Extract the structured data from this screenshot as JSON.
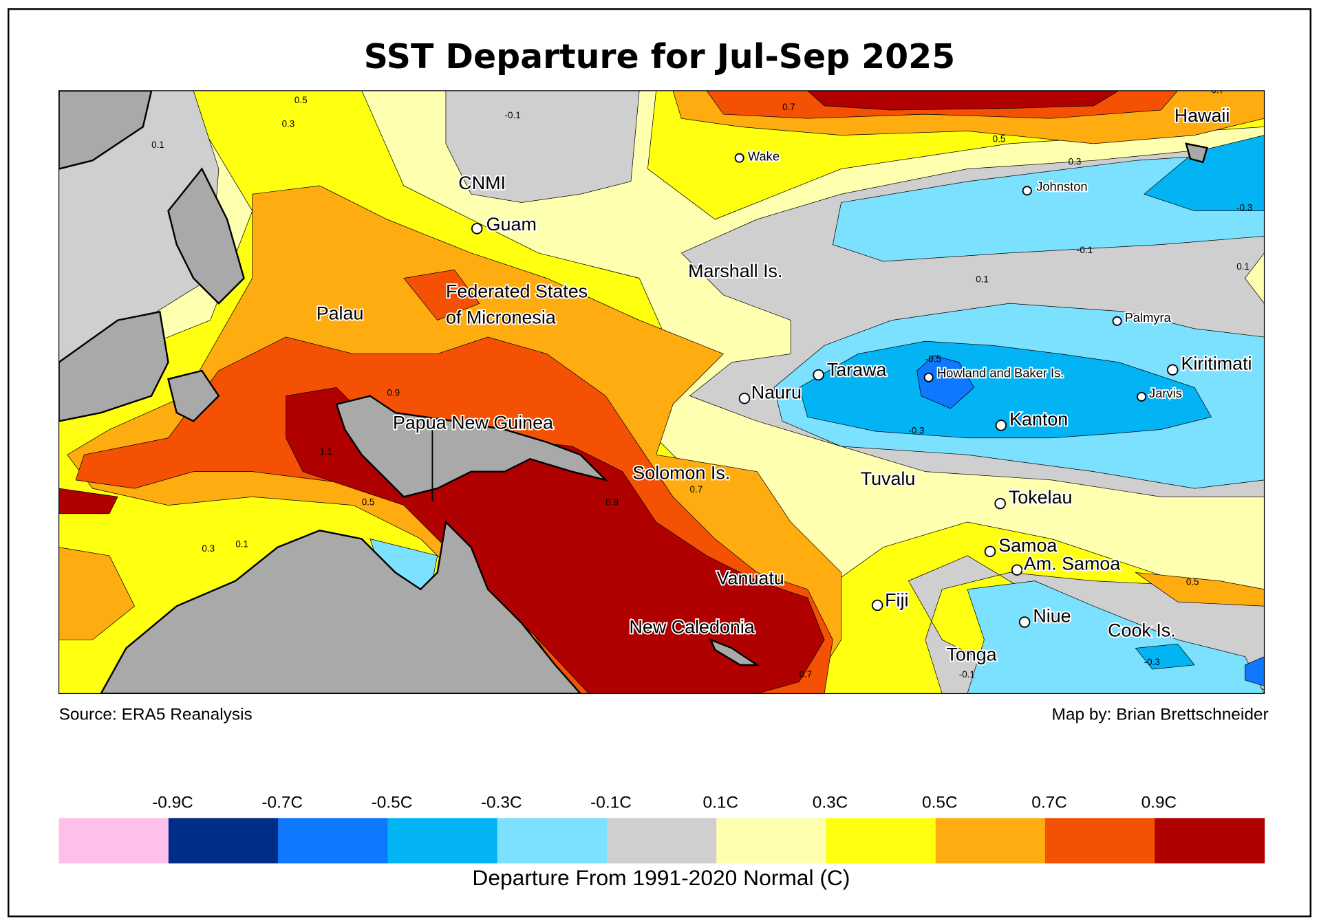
{
  "title": "SST Departure for Jul-Sep 2025",
  "source": "Source: ERA5 Reanalysis",
  "credit": "Map by: Brian Brettschneider",
  "legend": {
    "caption": "Departure From 1991-2020 Normal (C)",
    "colors": [
      "#fdc0e8",
      "#002d88",
      "#0e78fe",
      "#03b4f4",
      "#7be1fe",
      "#cfcfcf",
      "#ffffb0",
      "#ffff10",
      "#ffac10",
      "#f45104",
      "#b10000"
    ],
    "tick_labels": [
      "-0.9C",
      "-0.7C",
      "-0.5C",
      "-0.3C",
      "-0.1C",
      "0.1C",
      "0.3C",
      "0.5C",
      "0.7C",
      "0.9C"
    ]
  },
  "places": [
    {
      "name": "CNMI",
      "dot": false,
      "small": false
    },
    {
      "name": "Guam",
      "dot": true,
      "small": false
    },
    {
      "name": "Wake",
      "dot": true,
      "small": true
    },
    {
      "name": "Johnston",
      "dot": true,
      "small": true
    },
    {
      "name": "Hawaii",
      "dot": false,
      "small": false
    },
    {
      "name": "Marshall Is.",
      "dot": false,
      "small": false
    },
    {
      "name": "Palau",
      "dot": false,
      "small": false
    },
    {
      "name": "Federated States",
      "dot": false,
      "small": false
    },
    {
      "name": "of Micronesia",
      "dot": false,
      "small": false
    },
    {
      "name": "Palmyra",
      "dot": true,
      "small": true
    },
    {
      "name": "Tarawa",
      "dot": true,
      "small": false
    },
    {
      "name": "Nauru",
      "dot": true,
      "small": false
    },
    {
      "name": "Howland and Baker Is.",
      "dot": true,
      "small": true
    },
    {
      "name": "Kiritimati",
      "dot": true,
      "small": false
    },
    {
      "name": "Jarvis",
      "dot": true,
      "small": true
    },
    {
      "name": "Kanton",
      "dot": true,
      "small": false
    },
    {
      "name": "Papua New Guinea",
      "dot": false,
      "small": false
    },
    {
      "name": "Solomon Is.",
      "dot": false,
      "small": false
    },
    {
      "name": "Tuvalu",
      "dot": false,
      "small": false
    },
    {
      "name": "Tokelau",
      "dot": true,
      "small": false
    },
    {
      "name": "Samoa",
      "dot": true,
      "small": false
    },
    {
      "name": "Am. Samoa",
      "dot": true,
      "small": false
    },
    {
      "name": "Vanuatu",
      "dot": false,
      "small": false
    },
    {
      "name": "Fiji",
      "dot": true,
      "small": false
    },
    {
      "name": "Niue",
      "dot": true,
      "small": false
    },
    {
      "name": "Cook Is.",
      "dot": false,
      "small": false
    },
    {
      "name": "New Caledonia",
      "dot": false,
      "small": false
    },
    {
      "name": "Tonga",
      "dot": false,
      "small": false
    }
  ],
  "contour_labels": [
    "0.5",
    "0.3",
    "0.1",
    "-0.1",
    "0.7",
    "0.1",
    "0.5",
    "0.3",
    "-0.1",
    "-0.3",
    "0.1",
    "-0.5",
    "-0.3",
    "0.7",
    "0.9",
    "1.1",
    "0.9",
    "0.7",
    "0.5",
    "0.3",
    "0.1",
    "-0.1",
    "-0.3",
    "0.5",
    "0.7"
  ]
}
